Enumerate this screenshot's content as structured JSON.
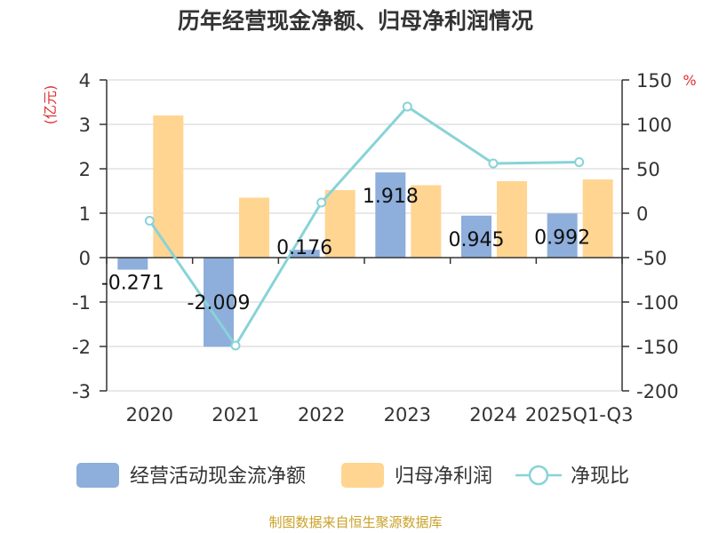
{
  "chart_data": {
    "type": "bar",
    "title": "历年经营现金净额、归母净利润情况",
    "categories": [
      "2020",
      "2021",
      "2022",
      "2023",
      "2024",
      "2025Q1-Q3"
    ],
    "series": [
      {
        "name": "经营活动现金流净额",
        "type": "bar",
        "axis": "left",
        "color": "#8eaedb",
        "values": [
          -0.271,
          -2.009,
          0.176,
          1.918,
          0.945,
          0.992
        ],
        "labels": [
          "-0.271",
          "-2.009",
          "0.176",
          "1.918",
          "0.945",
          "0.992"
        ]
      },
      {
        "name": "归母净利润",
        "type": "bar",
        "axis": "left",
        "color": "#ffd591",
        "values": [
          3.2,
          1.35,
          1.52,
          1.63,
          1.72,
          1.76
        ]
      },
      {
        "name": "净现比",
        "type": "line",
        "axis": "right",
        "color": "#88d3d8",
        "values": [
          -8.5,
          -149,
          12,
          120,
          56,
          57.5
        ]
      }
    ],
    "left_axis": {
      "unit": "(亿元)",
      "min": -3,
      "max": 4,
      "ticks": [
        4,
        3,
        2,
        1,
        0,
        -1,
        -2,
        -3
      ]
    },
    "right_axis": {
      "unit": "%",
      "min": -200,
      "max": 150,
      "ticks": [
        150,
        100,
        50,
        0,
        -50,
        -100,
        -150,
        -200
      ]
    },
    "grid": true,
    "legend_position": "bottom"
  },
  "footer": {
    "source": "制图数据来自恒生聚源数据库"
  }
}
